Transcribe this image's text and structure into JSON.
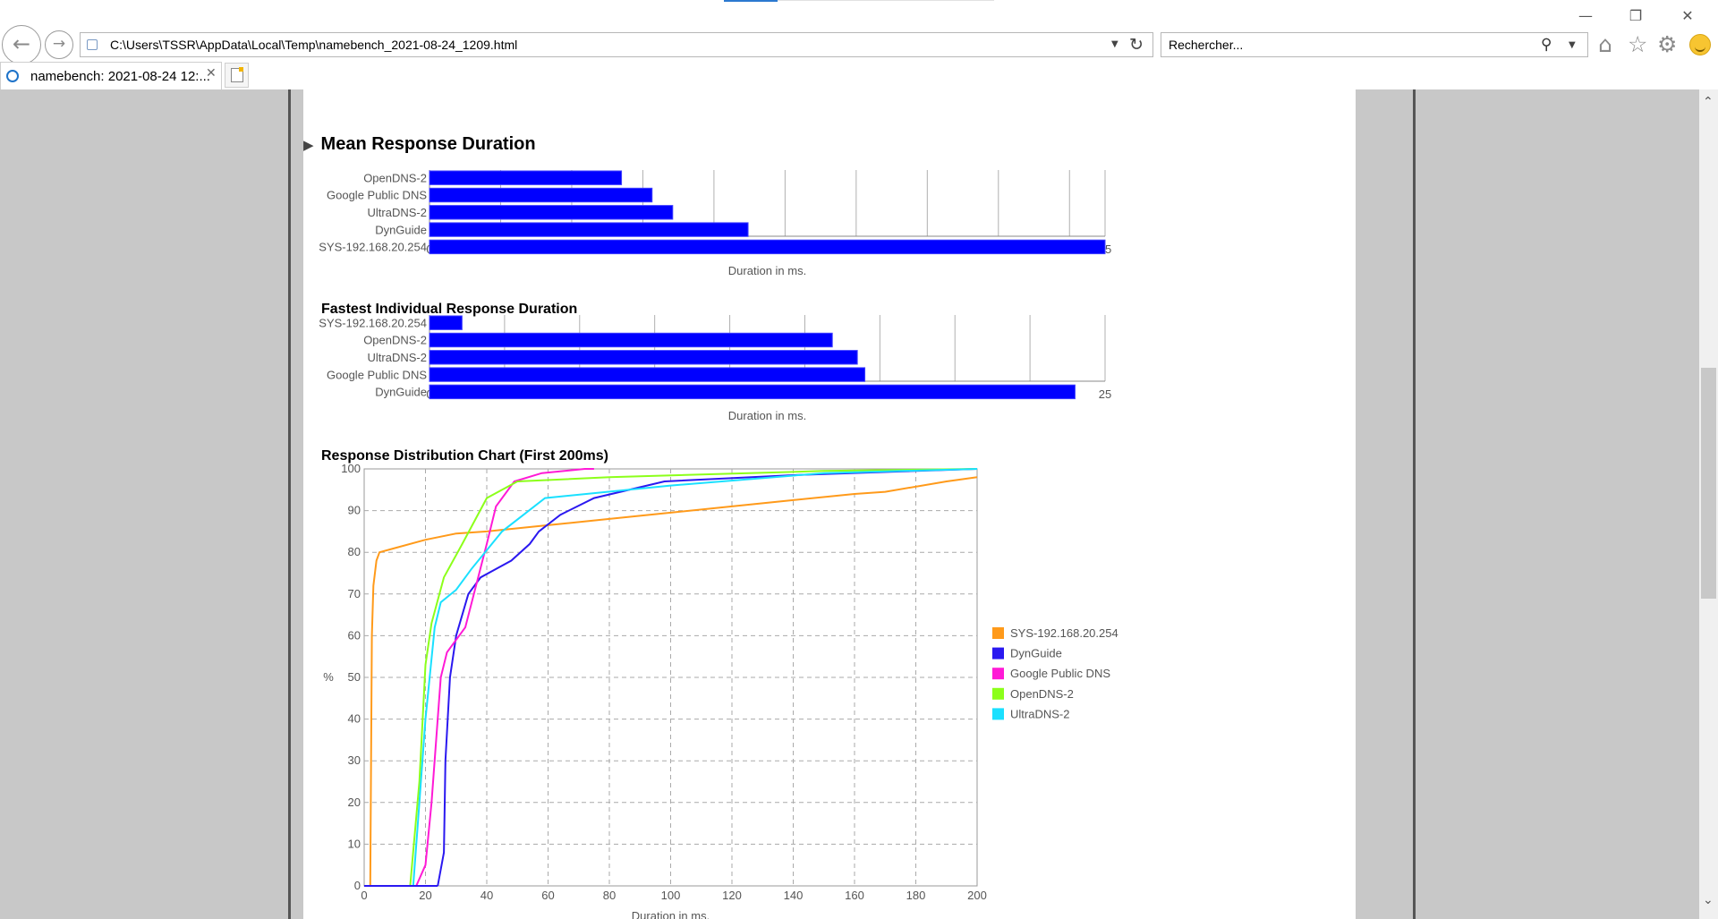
{
  "browser": {
    "window_controls": {
      "minimize": "—",
      "restore": "❐",
      "close": "✕"
    },
    "address": "C:\\Users\\TSSR\\AppData\\Local\\Temp\\namebench_2021-08-24_1209.html",
    "search_placeholder": "Rechercher...",
    "tab_title": "namebench: 2021-08-24 12:...",
    "icons": [
      "back-icon",
      "forward-icon",
      "refresh-icon",
      "search-icon",
      "home-icon",
      "favorites-star-icon",
      "settings-gear-icon",
      "smiley-icon"
    ]
  },
  "page": {
    "mean_title": "Mean Response Duration",
    "fastest_title": "Fastest Individual Response Duration",
    "distribution_title": "Response Distribution Chart (First 200ms)"
  },
  "colors": {
    "bar": "#0000ff",
    "accent": "#2b79d0"
  },
  "chart_data": [
    {
      "type": "bar",
      "orientation": "horizontal",
      "categories": [
        "OpenDNS-2",
        "Google Public DNS",
        "UltraDNS-2",
        "DynGuide",
        "SYS-192.168.20.254"
      ],
      "values": [
        27,
        31.3,
        34.2,
        44.8,
        95
      ],
      "xlabel": "Duration in ms.",
      "xlim": [
        0,
        95
      ],
      "xticks": [
        0,
        10,
        20,
        30,
        40,
        50,
        60,
        70,
        80,
        90,
        95
      ],
      "grid": "vertical"
    },
    {
      "type": "bar",
      "orientation": "horizontal",
      "categories": [
        "SYS-192.168.20.254",
        "OpenDNS-2",
        "UltraDNS-2",
        "Google Public DNS",
        "DynGuide"
      ],
      "values": [
        1.3,
        16.1,
        17.1,
        17.4,
        25.8
      ],
      "xlabel": "Duration in ms.",
      "xlim": [
        0,
        27
      ],
      "xticks": [
        0,
        3,
        6,
        9,
        12,
        15,
        18,
        21,
        24,
        25
      ],
      "grid": "vertical"
    },
    {
      "type": "line",
      "ylabel": "%",
      "xlabel": "Duration in ms.",
      "xlim": [
        0,
        200
      ],
      "ylim": [
        0,
        100
      ],
      "xticks": [
        0,
        20,
        40,
        60,
        80,
        100,
        120,
        140,
        160,
        180,
        200
      ],
      "yticks": [
        0,
        10,
        20,
        30,
        40,
        50,
        60,
        70,
        80,
        90,
        100
      ],
      "grid": "dashed",
      "legend": "right",
      "series": [
        {
          "name": "SYS-192.168.20.254",
          "color": "#ff9a1a",
          "x": [
            2,
            2.5,
            3,
            4,
            5,
            10,
            20,
            30,
            40,
            60,
            80,
            100,
            120,
            140,
            160,
            170,
            190,
            200
          ],
          "y": [
            0,
            60,
            72,
            78,
            80,
            81,
            83,
            84.5,
            85,
            86.5,
            88,
            89.5,
            91,
            92.5,
            94,
            94.5,
            97,
            98
          ]
        },
        {
          "name": "DynGuide",
          "color": "#2a18f0",
          "x": [
            24,
            26,
            26.5,
            28,
            30,
            34,
            38,
            48,
            54,
            57,
            64,
            75,
            98,
            140,
            180,
            200
          ],
          "y": [
            0,
            8,
            30,
            50,
            60,
            70,
            74,
            78,
            82,
            85,
            89,
            93,
            97,
            98.5,
            99.5,
            100
          ]
        },
        {
          "name": "Google Public DNS",
          "color": "#ff1ad6",
          "x": [
            17,
            20,
            22,
            25,
            27,
            33,
            40,
            43,
            49,
            58,
            72,
            75
          ],
          "y": [
            0,
            5,
            20,
            50,
            56,
            62,
            82,
            91,
            97,
            99,
            100,
            100
          ]
        },
        {
          "name": "OpenDNS-2",
          "color": "#8cff1a",
          "x": [
            15,
            18,
            20,
            22,
            26,
            32,
            40,
            50,
            80,
            150,
            200
          ],
          "y": [
            0,
            25,
            53,
            63,
            74,
            82,
            93,
            97,
            98,
            99.5,
            100
          ]
        },
        {
          "name": "UltraDNS-2",
          "color": "#1ae0ff",
          "x": [
            16,
            18,
            20,
            23,
            25,
            30,
            35,
            45,
            59,
            100,
            150,
            200
          ],
          "y": [
            0,
            20,
            40,
            62,
            68,
            71,
            76,
            85,
            93,
            96,
            99,
            100
          ]
        }
      ]
    }
  ]
}
